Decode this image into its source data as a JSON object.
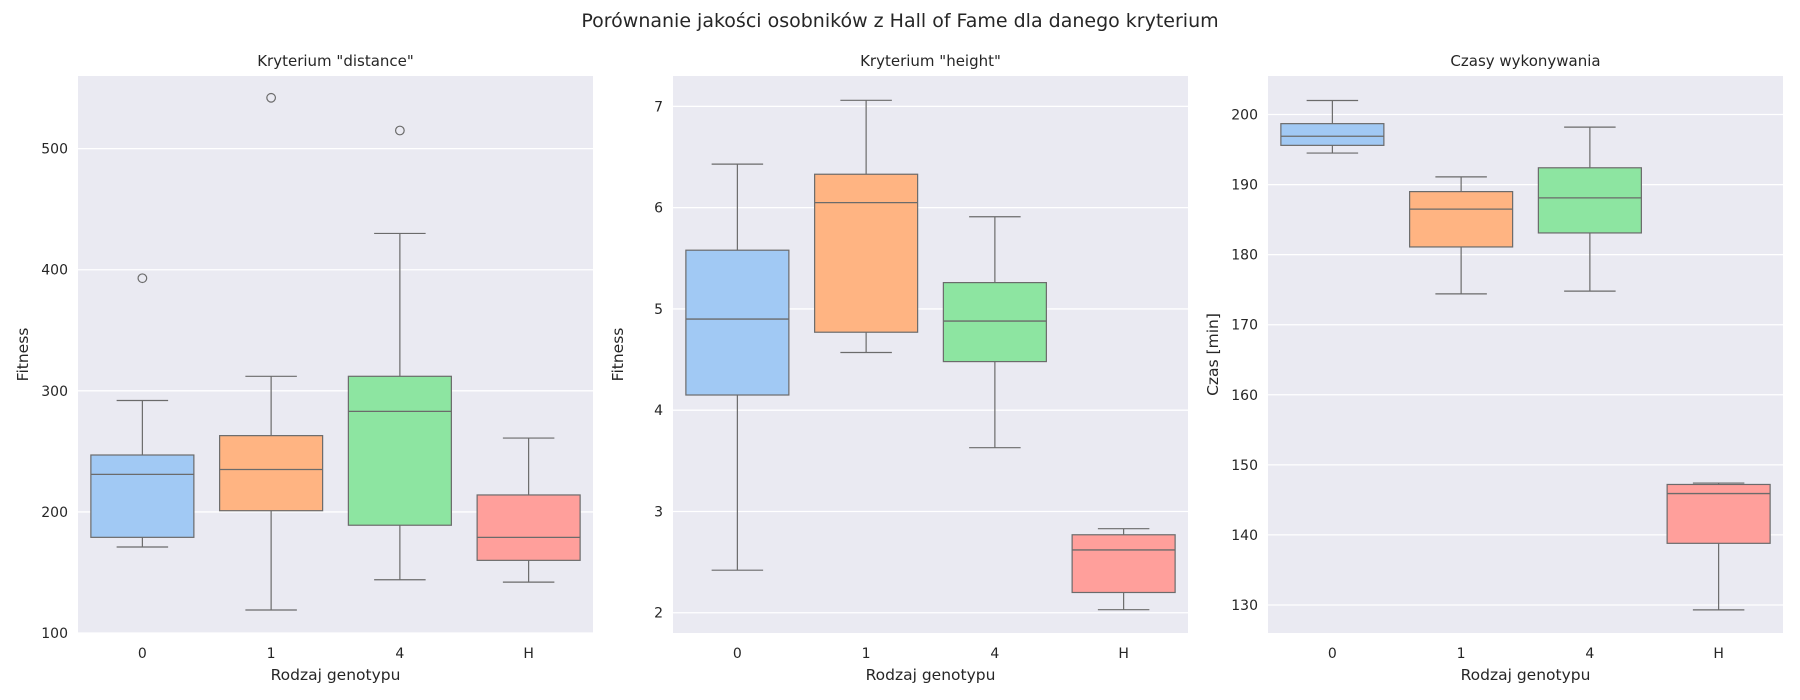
{
  "figure": {
    "title": "Porównanie jakości osobników z Hall of Fame dla danego kryterium"
  },
  "colors": {
    "panel_bg": "#eaeaf2",
    "grid": "#ffffff",
    "box_edge": "#6b6b6b",
    "series": [
      "#a1c9f4",
      "#ffb482",
      "#8de5a1",
      "#ff9f9b"
    ]
  },
  "chart_data": [
    {
      "type": "box",
      "title": "Kryterium \"distance\"",
      "xlabel": "Rodzaj genotypu",
      "ylabel": "Fitness",
      "categories": [
        "0",
        "1",
        "4",
        "H"
      ],
      "ylim": [
        100,
        560
      ],
      "yticks": [
        100,
        200,
        300,
        400,
        500
      ],
      "grid": true,
      "boxes": [
        {
          "category": "0",
          "whisker_low": 171,
          "q1": 179,
          "median": 231,
          "q3": 247,
          "whisker_high": 292,
          "outliers": [
            393
          ]
        },
        {
          "category": "1",
          "whisker_low": 119,
          "q1": 201,
          "median": 235,
          "q3": 263,
          "whisker_high": 312,
          "outliers": [
            542
          ]
        },
        {
          "category": "4",
          "whisker_low": 144,
          "q1": 189,
          "median": 283,
          "q3": 312,
          "whisker_high": 430,
          "outliers": [
            515
          ]
        },
        {
          "category": "H",
          "whisker_low": 142,
          "q1": 160,
          "median": 179,
          "q3": 214,
          "whisker_high": 261,
          "outliers": []
        }
      ]
    },
    {
      "type": "box",
      "title": "Kryterium \"height\"",
      "xlabel": "Rodzaj genotypu",
      "ylabel": "Fitness",
      "categories": [
        "0",
        "1",
        "4",
        "H"
      ],
      "ylim": [
        1.8,
        7.3
      ],
      "yticks": [
        2,
        3,
        4,
        5,
        6,
        7
      ],
      "grid": true,
      "boxes": [
        {
          "category": "0",
          "whisker_low": 2.42,
          "q1": 4.15,
          "median": 4.9,
          "q3": 5.58,
          "whisker_high": 6.43,
          "outliers": []
        },
        {
          "category": "1",
          "whisker_low": 4.57,
          "q1": 4.77,
          "median": 6.05,
          "q3": 6.33,
          "whisker_high": 7.06,
          "outliers": []
        },
        {
          "category": "4",
          "whisker_low": 3.63,
          "q1": 4.48,
          "median": 4.88,
          "q3": 5.26,
          "whisker_high": 5.91,
          "outliers": []
        },
        {
          "category": "H",
          "whisker_low": 2.03,
          "q1": 2.2,
          "median": 2.62,
          "q3": 2.77,
          "whisker_high": 2.83,
          "outliers": []
        }
      ]
    },
    {
      "type": "box",
      "title": "Czasy wykonywania",
      "xlabel": "Rodzaj genotypu",
      "ylabel": "Czas [min]",
      "categories": [
        "0",
        "1",
        "4",
        "H"
      ],
      "ylim": [
        126,
        205.5
      ],
      "yticks": [
        130,
        140,
        150,
        160,
        170,
        180,
        190,
        200
      ],
      "grid": true,
      "boxes": [
        {
          "category": "0",
          "whisker_low": 194.5,
          "q1": 195.6,
          "median": 196.9,
          "q3": 198.7,
          "whisker_high": 202.0,
          "outliers": []
        },
        {
          "category": "1",
          "whisker_low": 174.4,
          "q1": 181.1,
          "median": 186.5,
          "q3": 189.0,
          "whisker_high": 191.1,
          "outliers": []
        },
        {
          "category": "4",
          "whisker_low": 174.8,
          "q1": 183.1,
          "median": 188.1,
          "q3": 192.4,
          "whisker_high": 198.2,
          "outliers": []
        },
        {
          "category": "H",
          "whisker_low": 129.3,
          "q1": 138.8,
          "median": 145.9,
          "q3": 147.2,
          "whisker_high": 147.4,
          "outliers": []
        }
      ]
    }
  ]
}
